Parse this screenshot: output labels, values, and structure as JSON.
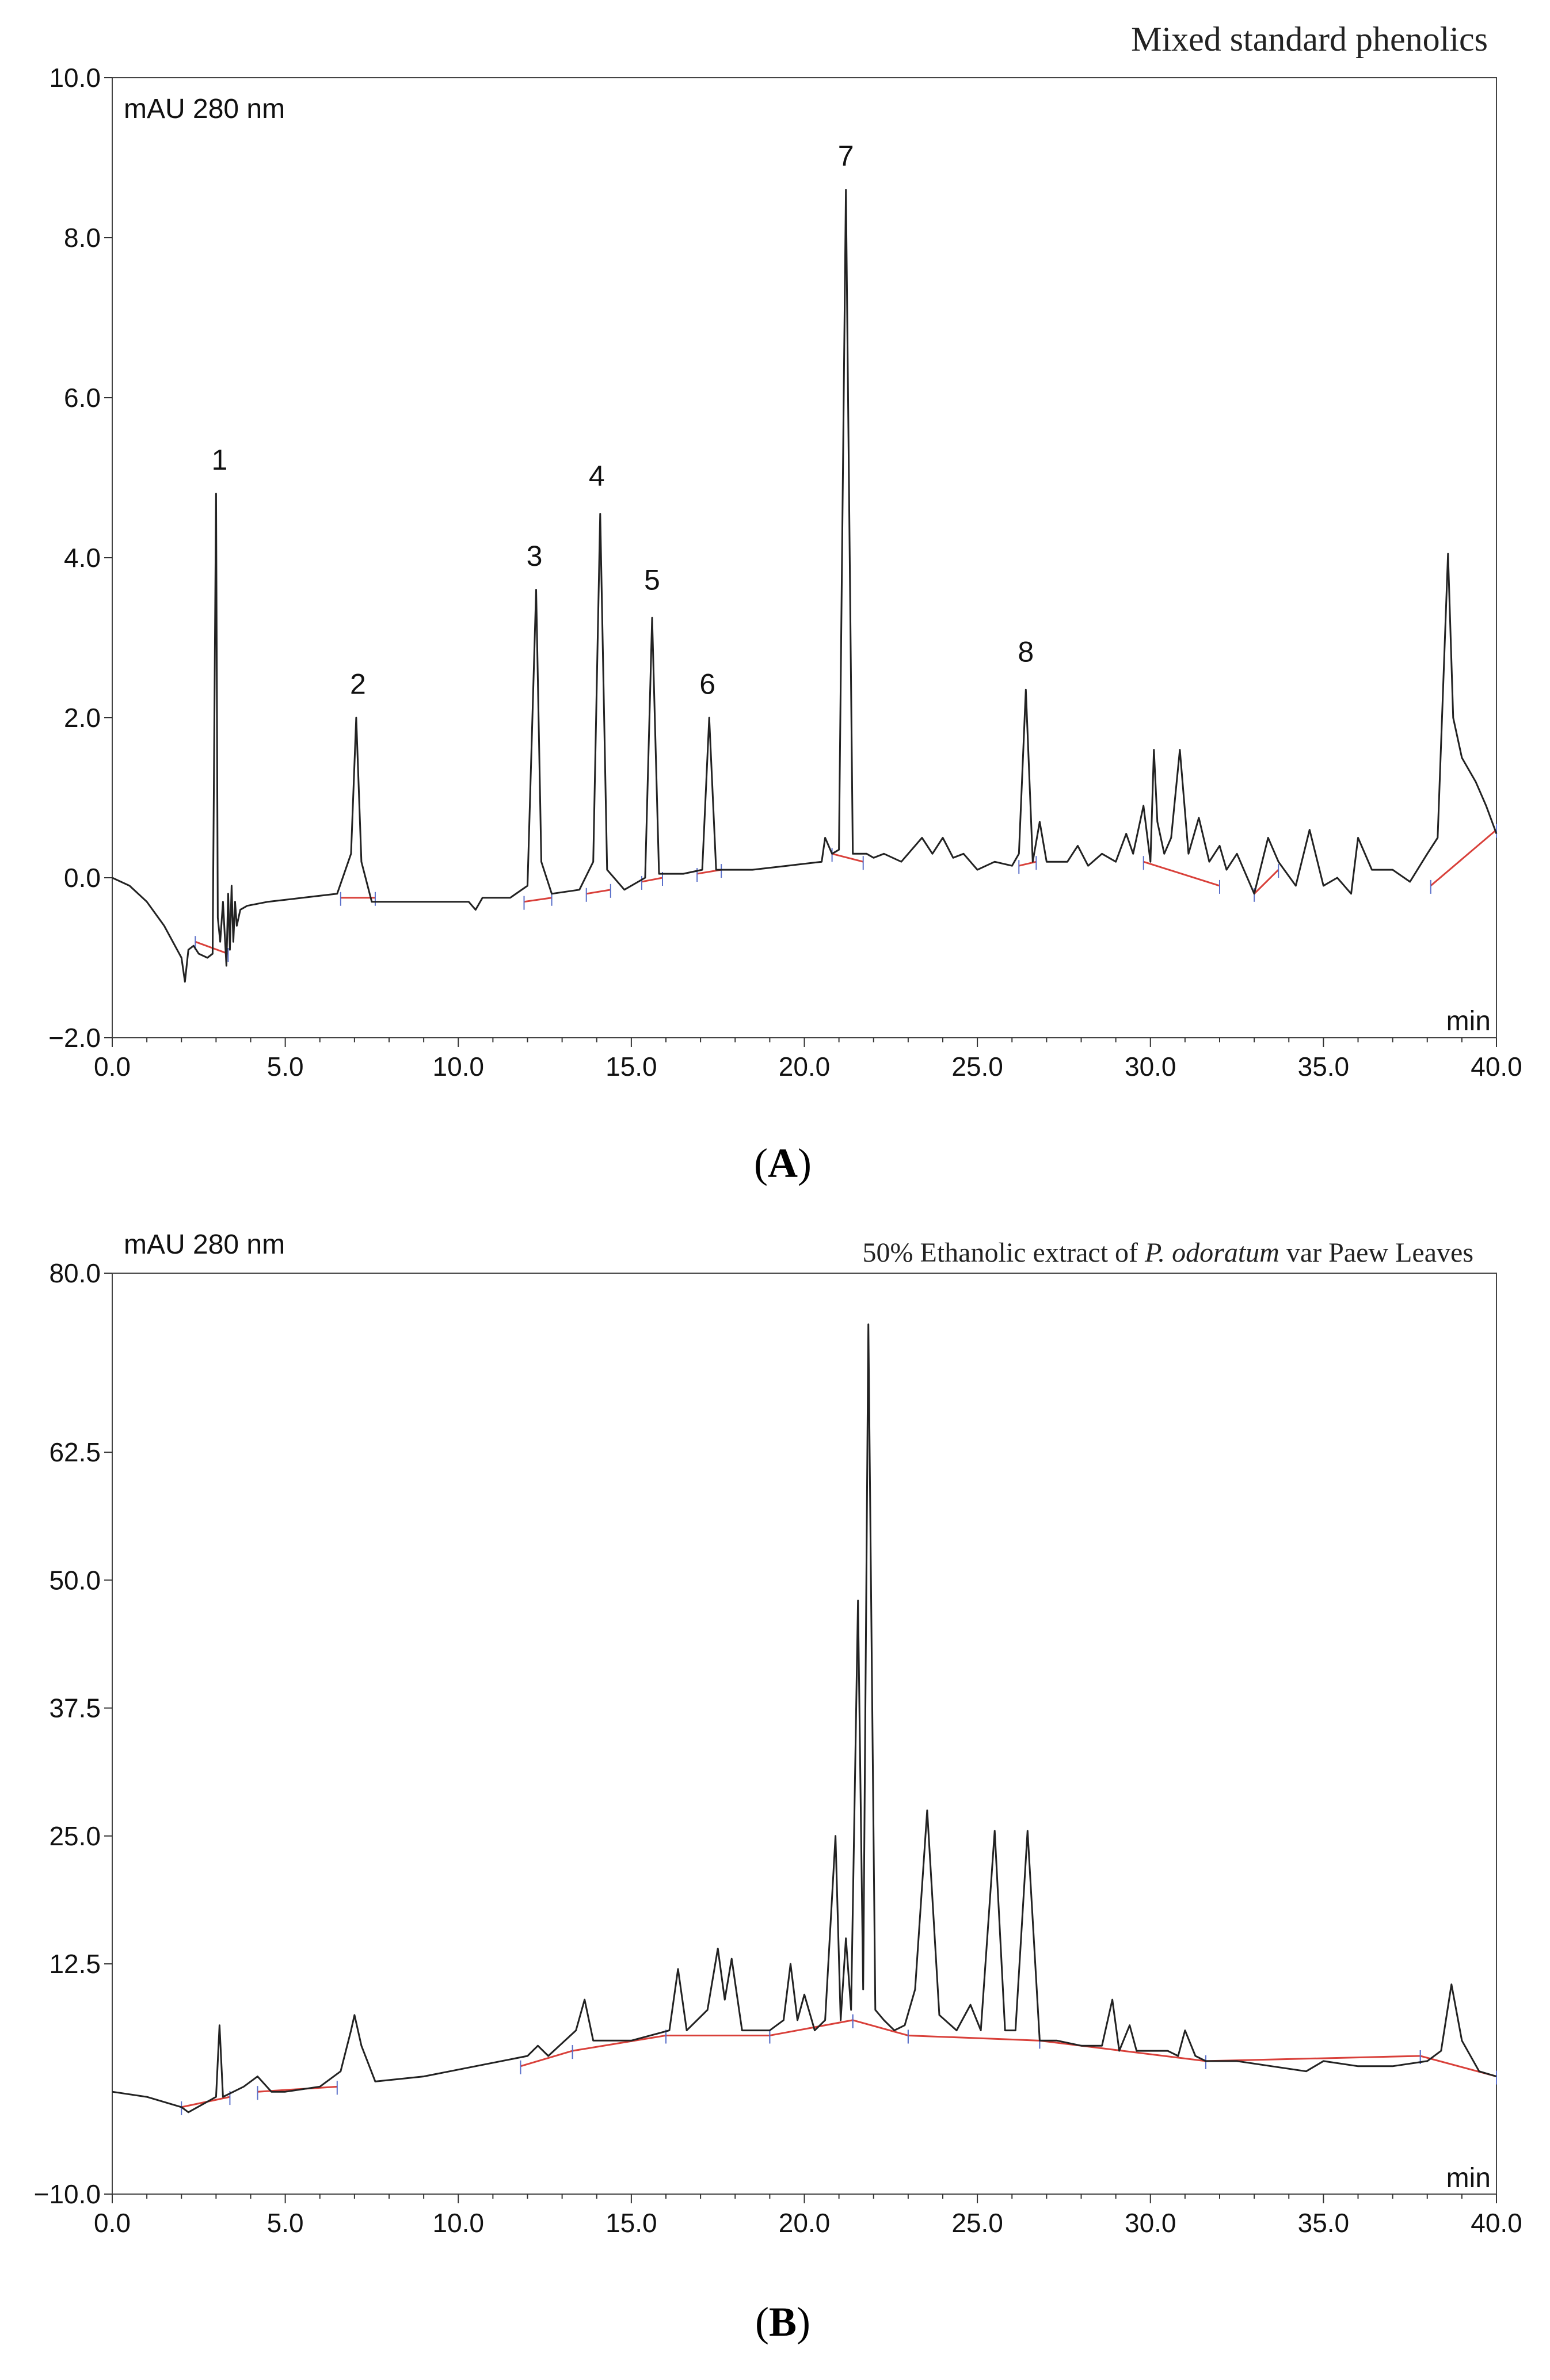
{
  "chart_data": [
    {
      "type": "line",
      "panel_label": "A",
      "title": "Mixed standard phenolics",
      "ylabel": "mAU 280 nm",
      "xlabel": "min",
      "xlim": [
        0,
        40
      ],
      "ylim": [
        -2,
        10
      ],
      "x_ticks": [
        0,
        5,
        10,
        15,
        20,
        25,
        30,
        35,
        40
      ],
      "x_tick_labels": [
        "0.0",
        "5.0",
        "10.0",
        "15.0",
        "20.0",
        "25.0",
        "30.0",
        "35.0",
        "40.0"
      ],
      "y_ticks": [
        -2,
        0,
        2,
        4,
        6,
        8,
        10
      ],
      "y_tick_labels": [
        "−2.0",
        "0.0",
        "2.0",
        "4.0",
        "6.0",
        "8.0",
        "10.0"
      ],
      "peak_labels": [
        {
          "text": "1",
          "x": 3.1,
          "y": 5.1
        },
        {
          "text": "2",
          "x": 7.1,
          "y": 2.3
        },
        {
          "text": "3",
          "x": 12.2,
          "y": 3.9
        },
        {
          "text": "4",
          "x": 14.0,
          "y": 4.9
        },
        {
          "text": "5",
          "x": 15.6,
          "y": 3.6
        },
        {
          "text": "6",
          "x": 17.2,
          "y": 2.3
        },
        {
          "text": "7",
          "x": 21.2,
          "y": 8.9
        },
        {
          "text": "8",
          "x": 26.4,
          "y": 2.7
        }
      ],
      "series": [
        {
          "color": "#222222",
          "x": [
            0,
            0.5,
            1.0,
            1.5,
            2.0,
            2.1,
            2.2,
            2.35,
            2.5,
            2.75,
            2.9,
            3.0,
            3.05,
            3.12,
            3.2,
            3.3,
            3.35,
            3.4,
            3.45,
            3.5,
            3.55,
            3.6,
            3.7,
            3.9,
            4.5,
            5.5,
            6.5,
            6.9,
            7.05,
            7.2,
            7.5,
            8.5,
            9.5,
            10.3,
            10.5,
            10.7,
            11.5,
            12.0,
            12.25,
            12.4,
            12.7,
            13.5,
            13.9,
            14.1,
            14.3,
            14.8,
            15.4,
            15.6,
            15.8,
            16.5,
            17.05,
            17.25,
            17.45,
            18.5,
            19.5,
            20.5,
            20.6,
            20.8,
            21.0,
            21.2,
            21.4,
            21.8,
            22.0,
            22.3,
            22.8,
            23.4,
            23.7,
            24.0,
            24.3,
            24.6,
            25.0,
            25.5,
            26.0,
            26.2,
            26.4,
            26.6,
            26.8,
            27.0,
            27.6,
            27.9,
            28.2,
            28.6,
            29.0,
            29.3,
            29.5,
            29.8,
            30.0,
            30.1,
            30.2,
            30.4,
            30.6,
            30.85,
            31.1,
            31.4,
            31.7,
            32.0,
            32.2,
            32.5,
            33.0,
            33.4,
            33.7,
            34.2,
            34.6,
            35.0,
            35.4,
            35.8,
            36.0,
            36.4,
            37.0,
            37.5,
            38.0,
            38.3,
            38.6,
            38.75,
            39.0,
            39.4,
            39.7,
            40.0
          ],
          "y": [
            0.0,
            -0.1,
            -0.3,
            -0.6,
            -1.0,
            -1.3,
            -0.9,
            -0.85,
            -0.95,
            -1.0,
            -0.95,
            4.8,
            -0.5,
            -0.8,
            -0.3,
            -1.1,
            -0.2,
            -0.9,
            -0.1,
            -0.8,
            -0.3,
            -0.6,
            -0.4,
            -0.35,
            -0.3,
            -0.25,
            -0.2,
            0.3,
            2.0,
            0.2,
            -0.3,
            -0.3,
            -0.3,
            -0.3,
            -0.4,
            -0.25,
            -0.25,
            -0.1,
            3.6,
            0.2,
            -0.2,
            -0.15,
            0.2,
            4.55,
            0.1,
            -0.15,
            0.0,
            3.25,
            0.05,
            0.05,
            0.1,
            2.0,
            0.1,
            0.1,
            0.15,
            0.2,
            0.5,
            0.3,
            0.35,
            8.6,
            0.3,
            0.3,
            0.25,
            0.3,
            0.2,
            0.5,
            0.3,
            0.5,
            0.25,
            0.3,
            0.1,
            0.2,
            0.15,
            0.3,
            2.35,
            0.2,
            0.7,
            0.2,
            0.2,
            0.4,
            0.15,
            0.3,
            0.2,
            0.55,
            0.3,
            0.9,
            0.2,
            1.6,
            0.7,
            0.3,
            0.5,
            1.6,
            0.3,
            0.75,
            0.2,
            0.4,
            0.1,
            0.3,
            -0.2,
            0.5,
            0.2,
            -0.1,
            0.6,
            -0.1,
            0.0,
            -0.2,
            0.5,
            0.1,
            0.1,
            -0.05,
            0.3,
            0.5,
            4.05,
            2.0,
            1.5,
            1.2,
            0.9,
            0.55
          ]
        }
      ],
      "baselines": {
        "color": "#d9403a",
        "segments": [
          [
            [
              2.4,
              -0.8
            ],
            [
              3.35,
              -0.95
            ]
          ],
          [
            [
              6.6,
              -0.25
            ],
            [
              7.6,
              -0.25
            ]
          ],
          [
            [
              11.9,
              -0.3
            ],
            [
              12.7,
              -0.25
            ]
          ],
          [
            [
              13.7,
              -0.2
            ],
            [
              14.4,
              -0.15
            ]
          ],
          [
            [
              15.3,
              -0.05
            ],
            [
              15.9,
              0.0
            ]
          ],
          [
            [
              16.9,
              0.05
            ],
            [
              17.6,
              0.1
            ]
          ],
          [
            [
              20.8,
              0.3
            ],
            [
              21.7,
              0.2
            ]
          ],
          [
            [
              26.2,
              0.15
            ],
            [
              26.7,
              0.2
            ]
          ],
          [
            [
              29.8,
              0.2
            ],
            [
              32.0,
              -0.1
            ]
          ],
          [
            [
              33.0,
              -0.2
            ],
            [
              33.7,
              0.1
            ]
          ],
          [
            [
              38.1,
              -0.1
            ],
            [
              40.0,
              0.6
            ]
          ]
        ]
      }
    },
    {
      "type": "line",
      "panel_label": "B",
      "title_prefix": "50% Ethanolic extract of ",
      "title_species": "P. odoratum",
      "title_suffix": " var Paew Leaves",
      "ylabel": "mAU 280 nm",
      "xlabel": "min",
      "xlim": [
        0,
        40
      ],
      "ylim": [
        -10,
        80
      ],
      "x_ticks": [
        0,
        5,
        10,
        15,
        20,
        25,
        30,
        35,
        40
      ],
      "x_tick_labels": [
        "0.0",
        "5.0",
        "10.0",
        "15.0",
        "20.0",
        "25.0",
        "30.0",
        "35.0",
        "40.0"
      ],
      "y_ticks": [
        -10,
        12.5,
        25,
        37.5,
        50,
        62.5,
        80
      ],
      "y_tick_labels": [
        "−10.0",
        "12.5",
        "25.0",
        "37.5",
        "50.0",
        "62.5",
        "80.0"
      ],
      "series": [
        {
          "color": "#222222",
          "x": [
            0,
            1.0,
            2.0,
            2.2,
            3.0,
            3.1,
            3.2,
            3.8,
            4.2,
            4.6,
            5.0,
            6.0,
            6.6,
            6.9,
            7.0,
            7.2,
            7.6,
            9.0,
            10.5,
            12.0,
            12.3,
            12.6,
            13.4,
            13.65,
            13.9,
            15.0,
            16.1,
            16.35,
            16.6,
            17.2,
            17.5,
            17.7,
            17.9,
            18.2,
            19.0,
            19.4,
            19.6,
            19.8,
            20.0,
            20.3,
            20.6,
            20.9,
            21.05,
            21.2,
            21.35,
            21.55,
            21.7,
            21.85,
            22.05,
            22.3,
            22.6,
            22.9,
            23.2,
            23.55,
            23.9,
            24.4,
            24.8,
            25.1,
            25.5,
            25.8,
            26.1,
            26.45,
            26.8,
            27.3,
            28.0,
            28.6,
            28.9,
            29.1,
            29.4,
            29.6,
            30.0,
            30.5,
            30.8,
            31.0,
            31.3,
            31.6,
            32.5,
            33.5,
            34.5,
            35.0,
            36.0,
            37.0,
            38.0,
            38.4,
            38.7,
            39.0,
            39.5,
            40.0
          ],
          "y": [
            0.0,
            -0.5,
            -1.5,
            -2.0,
            -0.5,
            6.5,
            -0.5,
            0.5,
            1.5,
            0.0,
            0.0,
            0.5,
            2.0,
            6.0,
            7.5,
            4.5,
            1.0,
            1.5,
            2.5,
            3.5,
            4.5,
            3.5,
            6.0,
            9.0,
            5.0,
            5.0,
            6.0,
            12.0,
            6.0,
            8.0,
            14.0,
            9.0,
            13.0,
            6.0,
            6.0,
            7.0,
            12.5,
            7.0,
            9.5,
            6.0,
            7.0,
            25.0,
            7.0,
            15.0,
            8.0,
            48.0,
            10.0,
            75.0,
            8.0,
            7.0,
            6.0,
            6.5,
            10.0,
            27.5,
            7.5,
            6.0,
            8.5,
            6.0,
            25.5,
            6.0,
            6.0,
            25.5,
            5.0,
            5.0,
            4.5,
            4.5,
            9.0,
            4.0,
            6.5,
            4.0,
            4.0,
            4.0,
            3.5,
            6.0,
            3.5,
            3.0,
            3.0,
            2.5,
            2.0,
            3.0,
            2.5,
            2.5,
            3.0,
            4.0,
            10.5,
            5.0,
            2.0,
            1.5
          ]
        }
      ],
      "baselines": {
        "color": "#d9403a",
        "segments": [
          [
            [
              2.0,
              -1.5
            ],
            [
              3.4,
              -0.5
            ]
          ],
          [
            [
              4.2,
              0.0
            ],
            [
              6.5,
              0.5
            ]
          ],
          [
            [
              11.8,
              2.5
            ],
            [
              13.3,
              4.0
            ]
          ],
          [
            [
              13.3,
              4.0
            ],
            [
              16.0,
              5.5
            ]
          ],
          [
            [
              16.0,
              5.5
            ],
            [
              19.0,
              5.5
            ]
          ],
          [
            [
              19.0,
              5.5
            ],
            [
              21.4,
              7.0
            ]
          ],
          [
            [
              21.4,
              7.0
            ],
            [
              23.0,
              5.5
            ]
          ],
          [
            [
              23.0,
              5.5
            ],
            [
              26.8,
              5.0
            ]
          ],
          [
            [
              26.8,
              5.0
            ],
            [
              31.6,
              3.0
            ]
          ],
          [
            [
              31.6,
              3.0
            ],
            [
              37.8,
              3.5
            ]
          ],
          [
            [
              37.8,
              3.5
            ],
            [
              40.0,
              1.5
            ]
          ]
        ]
      }
    }
  ]
}
